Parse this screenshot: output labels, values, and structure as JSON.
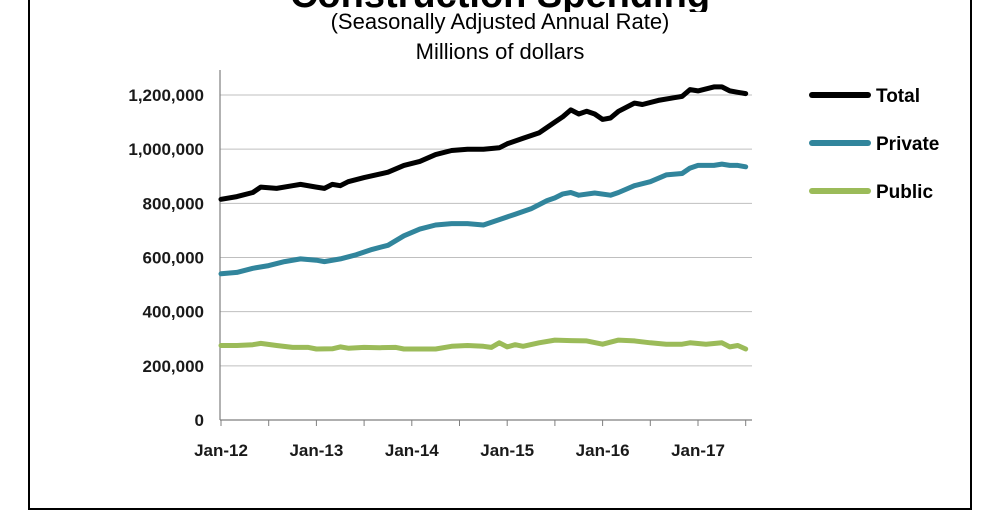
{
  "chart_data": {
    "type": "line",
    "title": "Construction Spending",
    "subtitle": "(Seasonally Adjusted Annual Rate)",
    "units": "Millions of dollars",
    "ylim": [
      0,
      1200000
    ],
    "yticks": [
      "1,200,000",
      "1,000,000",
      "800,000",
      "600,000",
      "400,000",
      "200,000",
      "0"
    ],
    "ytick_values": [
      1200000,
      1000000,
      800000,
      600000,
      400000,
      200000,
      0
    ],
    "x_labels": [
      "Jan-12",
      "Jan-13",
      "Jan-14",
      "Jan-15",
      "Jan-16",
      "Jan-17"
    ],
    "x_label_months": [
      0,
      12,
      24,
      36,
      48,
      60
    ],
    "x_months_total": 66,
    "grid": true,
    "legend_position": "right",
    "series": [
      {
        "name": "Total",
        "color": "#000000",
        "points": [
          [
            0,
            815000
          ],
          [
            2,
            825000
          ],
          [
            4,
            840000
          ],
          [
            5,
            860000
          ],
          [
            7,
            855000
          ],
          [
            9,
            865000
          ],
          [
            10,
            870000
          ],
          [
            12,
            860000
          ],
          [
            13,
            855000
          ],
          [
            14,
            870000
          ],
          [
            15,
            865000
          ],
          [
            16,
            880000
          ],
          [
            18,
            895000
          ],
          [
            21,
            915000
          ],
          [
            23,
            940000
          ],
          [
            25,
            955000
          ],
          [
            27,
            980000
          ],
          [
            29,
            995000
          ],
          [
            31,
            1000000
          ],
          [
            33,
            1000000
          ],
          [
            35,
            1005000
          ],
          [
            36,
            1020000
          ],
          [
            38,
            1040000
          ],
          [
            40,
            1060000
          ],
          [
            42,
            1100000
          ],
          [
            43,
            1120000
          ],
          [
            44,
            1145000
          ],
          [
            45,
            1130000
          ],
          [
            46,
            1140000
          ],
          [
            47,
            1130000
          ],
          [
            48,
            1110000
          ],
          [
            49,
            1115000
          ],
          [
            50,
            1140000
          ],
          [
            52,
            1170000
          ],
          [
            53,
            1165000
          ],
          [
            55,
            1180000
          ],
          [
            57,
            1190000
          ],
          [
            58,
            1195000
          ],
          [
            59,
            1220000
          ],
          [
            60,
            1215000
          ],
          [
            62,
            1230000
          ],
          [
            63,
            1230000
          ],
          [
            64,
            1215000
          ],
          [
            65,
            1210000
          ],
          [
            66,
            1205000
          ]
        ]
      },
      {
        "name": "Private",
        "color": "#31859c",
        "points": [
          [
            0,
            540000
          ],
          [
            2,
            545000
          ],
          [
            4,
            560000
          ],
          [
            6,
            570000
          ],
          [
            8,
            585000
          ],
          [
            10,
            595000
          ],
          [
            12,
            590000
          ],
          [
            13,
            585000
          ],
          [
            15,
            595000
          ],
          [
            17,
            610000
          ],
          [
            19,
            630000
          ],
          [
            21,
            645000
          ],
          [
            23,
            680000
          ],
          [
            25,
            705000
          ],
          [
            27,
            720000
          ],
          [
            29,
            725000
          ],
          [
            31,
            725000
          ],
          [
            33,
            720000
          ],
          [
            35,
            740000
          ],
          [
            37,
            760000
          ],
          [
            39,
            780000
          ],
          [
            41,
            810000
          ],
          [
            42,
            820000
          ],
          [
            43,
            835000
          ],
          [
            44,
            840000
          ],
          [
            45,
            830000
          ],
          [
            47,
            838000
          ],
          [
            49,
            830000
          ],
          [
            50,
            840000
          ],
          [
            52,
            865000
          ],
          [
            54,
            880000
          ],
          [
            56,
            905000
          ],
          [
            58,
            910000
          ],
          [
            59,
            930000
          ],
          [
            60,
            940000
          ],
          [
            62,
            940000
          ],
          [
            63,
            945000
          ],
          [
            64,
            940000
          ],
          [
            65,
            940000
          ],
          [
            66,
            935000
          ]
        ]
      },
      {
        "name": "Public",
        "color": "#9bbb59",
        "points": [
          [
            0,
            275000
          ],
          [
            2,
            275000
          ],
          [
            4,
            278000
          ],
          [
            5,
            283000
          ],
          [
            7,
            275000
          ],
          [
            9,
            268000
          ],
          [
            11,
            268000
          ],
          [
            12,
            262000
          ],
          [
            14,
            263000
          ],
          [
            15,
            270000
          ],
          [
            16,
            265000
          ],
          [
            18,
            268000
          ],
          [
            20,
            267000
          ],
          [
            22,
            268000
          ],
          [
            23,
            262000
          ],
          [
            25,
            262000
          ],
          [
            27,
            262000
          ],
          [
            29,
            272000
          ],
          [
            31,
            275000
          ],
          [
            33,
            272000
          ],
          [
            34,
            268000
          ],
          [
            35,
            285000
          ],
          [
            36,
            270000
          ],
          [
            37,
            278000
          ],
          [
            38,
            272000
          ],
          [
            40,
            285000
          ],
          [
            42,
            295000
          ],
          [
            44,
            293000
          ],
          [
            46,
            292000
          ],
          [
            48,
            280000
          ],
          [
            50,
            295000
          ],
          [
            52,
            292000
          ],
          [
            54,
            285000
          ],
          [
            56,
            280000
          ],
          [
            58,
            280000
          ],
          [
            59,
            285000
          ],
          [
            61,
            280000
          ],
          [
            63,
            285000
          ],
          [
            64,
            270000
          ],
          [
            65,
            275000
          ],
          [
            66,
            262000
          ]
        ]
      }
    ]
  }
}
